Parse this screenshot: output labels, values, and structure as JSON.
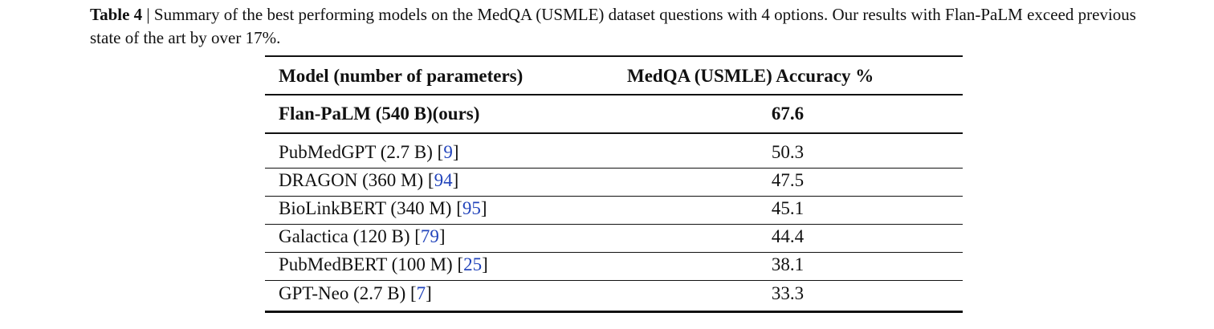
{
  "caption": {
    "label": "Table 4",
    "separator": "|",
    "text": "Summary of the best performing models on the MedQA (USMLE) dataset questions with 4 options. Our results with Flan-PaLM exceed previous state of the art by over 17%."
  },
  "table": {
    "header": [
      "Model (number of parameters)",
      "MedQA (USMLE) Accuracy %"
    ],
    "rows": [
      {
        "model": "Flan-PaLM (540 B)(ours)",
        "accuracy": 67.6
      },
      {
        "model": "PubMedGPT (2.7 B)",
        "citation": "[9]",
        "accuracy": 50.3
      },
      {
        "model": "DRAGON (360 M)",
        "citation": "[94]",
        "accuracy": 47.5
      },
      {
        "model": "BioLinkBERT (340 M)",
        "citation": "[95]",
        "accuracy": 45.1
      },
      {
        "model": "Galactica (120 B)",
        "citation": "[79]",
        "accuracy": 44.4
      },
      {
        "model": "PubMedBERT (100 M)",
        "citation": "[25]",
        "accuracy": 38.1
      },
      {
        "model": "GPT-Neo (2.7 B)",
        "citation": "[7]",
        "accuracy": 33.3
      }
    ]
  }
}
